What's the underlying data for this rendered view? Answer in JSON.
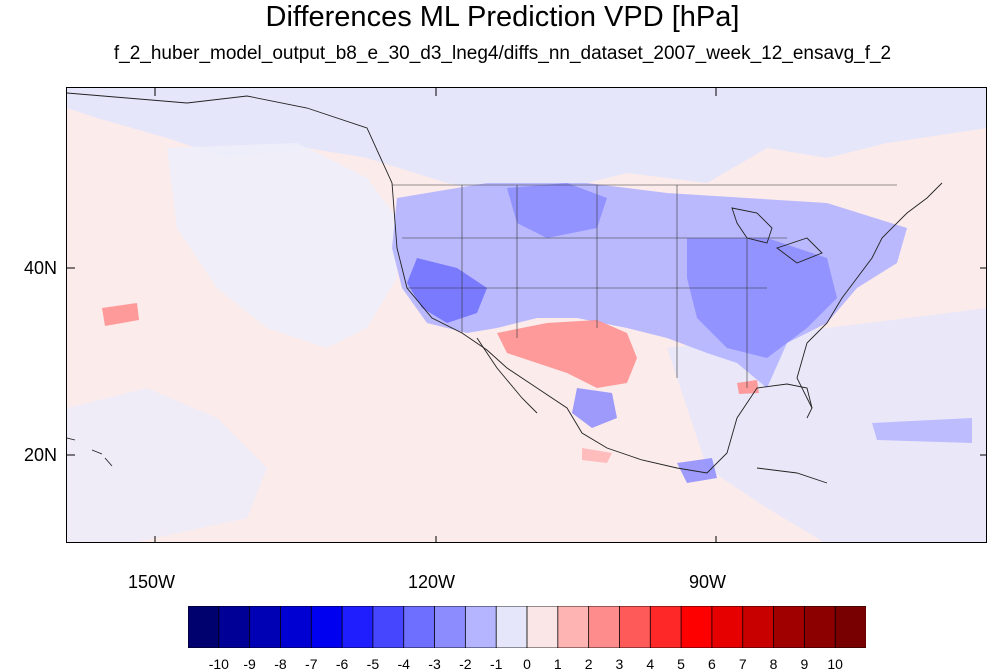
{
  "title": "Differences ML Prediction VPD [hPa]",
  "subtitle": "f_2_huber_model_output_b8_e_30_d3_lneg4/diffs_nn_dataset_2007_week_12_ensavg_f_2",
  "axes": {
    "lon_labels": [
      "150W",
      "120W",
      "90W"
    ],
    "lat_labels": [
      "40N",
      "20N"
    ],
    "lon_range": [
      -159,
      -61
    ],
    "lat_range": [
      11,
      60
    ]
  },
  "colorbar": {
    "labels": [
      "-10",
      "-9",
      "-8",
      "-7",
      "-6",
      "-5",
      "-4",
      "-3",
      "-2",
      "-1",
      "0",
      "1",
      "2",
      "3",
      "4",
      "5",
      "6",
      "7",
      "8",
      "9",
      "10"
    ],
    "colors": [
      "#00006e",
      "#000096",
      "#0000b4",
      "#0000d2",
      "#0000f0",
      "#1e1eff",
      "#4646ff",
      "#6e6eff",
      "#8c8cff",
      "#b4b4ff",
      "#e6e6fa",
      "#fae6e6",
      "#ffb4b4",
      "#ff8c8c",
      "#ff5a5a",
      "#ff2828",
      "#ff0000",
      "#e60000",
      "#c80000",
      "#a00000",
      "#8c0000",
      "#780000"
    ]
  }
}
